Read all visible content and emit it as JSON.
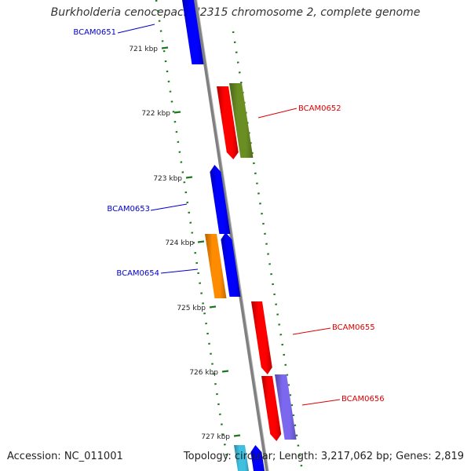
{
  "title": "Burkholderia cenocepacia J2315 chromosome 2, complete genome",
  "footer": {
    "accession": "Accession: NC_011001",
    "summary": "Topology: circular; Length: 3,217,062 bp; Genes: 2,819"
  },
  "colors": {
    "backbone": "#808080",
    "tick": "#1a7a1a",
    "tick_label": "#222222",
    "label_blue": "#0000cc",
    "label_red": "#dd0000"
  },
  "ticks": [
    "721 kbp",
    "722 kbp",
    "723 kbp",
    "724 kbp",
    "725 kbp",
    "726 kbp",
    "727 kbp"
  ],
  "genes": [
    {
      "name": "gene-bcam0651",
      "color": "#0000ff"
    },
    {
      "name": "gene-red-1",
      "color": "#ff0000"
    },
    {
      "name": "gene-olive",
      "color": "#6b8e23"
    },
    {
      "name": "gene-bcam0653",
      "color": "#0000ff"
    },
    {
      "name": "gene-orange",
      "color": "#ff8c00"
    },
    {
      "name": "gene-bcam0654",
      "color": "#0000ff"
    },
    {
      "name": "gene-bcam0655",
      "color": "#ff0000"
    },
    {
      "name": "gene-red-2",
      "color": "#ff0000"
    },
    {
      "name": "gene-purple",
      "color": "#7b68ee"
    },
    {
      "name": "gene-cyan-bottom",
      "color": "#40c0e0"
    },
    {
      "name": "gene-blue-bottom",
      "color": "#0000ff"
    }
  ],
  "labels": [
    {
      "text": "BCAM0651",
      "color": "#0000cc"
    },
    {
      "text": "BCAM0652",
      "color": "#dd0000"
    },
    {
      "text": "BCAM0653",
      "color": "#0000cc"
    },
    {
      "text": "BCAM0654",
      "color": "#0000cc"
    },
    {
      "text": "BCAM0655",
      "color": "#dd0000"
    },
    {
      "text": "BCAM0656",
      "color": "#dd0000"
    }
  ]
}
